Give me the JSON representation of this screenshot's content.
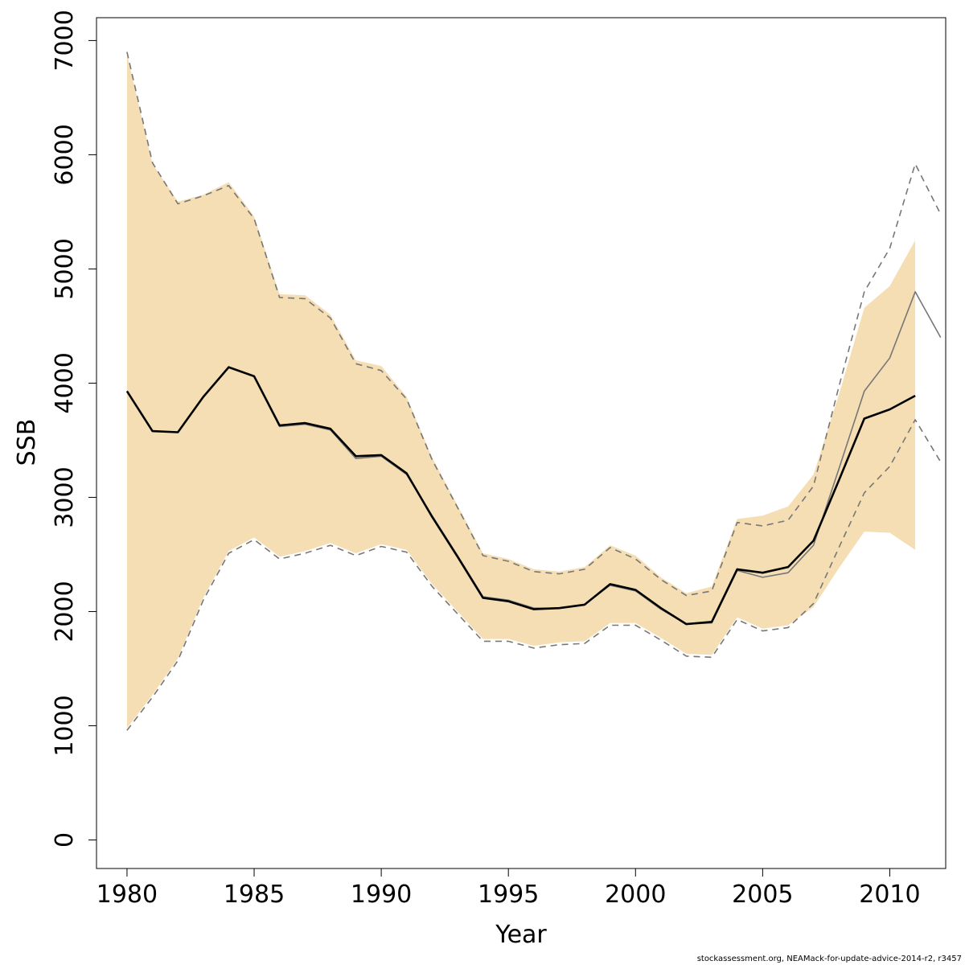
{
  "chart_data": {
    "type": "line",
    "title": "",
    "xlabel": "Year",
    "ylabel": "SSB",
    "xlim": [
      1978.8,
      2012.2
    ],
    "ylim": [
      -250,
      7200
    ],
    "xticks": [
      1980,
      1985,
      1990,
      1995,
      2000,
      2005,
      2010
    ],
    "yticks": [
      0,
      1000,
      2000,
      3000,
      4000,
      5000,
      6000,
      7000
    ],
    "grid": false,
    "legend": "none",
    "colors": {
      "band": "#f5deb3",
      "estimate": "#000000",
      "retro": "#777777",
      "retro_ci": "#777777"
    },
    "band": {
      "x": [
        1980,
        1981,
        1982,
        1983,
        1984,
        1985,
        1986,
        1987,
        1988,
        1989,
        1990,
        1991,
        1992,
        1993,
        1994,
        1995,
        1996,
        1997,
        1998,
        1999,
        2000,
        2001,
        2002,
        2003,
        2004,
        2005,
        2006,
        2007,
        2008,
        2009,
        2010,
        2011
      ],
      "low": [
        980,
        1270,
        1590,
        2120,
        2530,
        2650,
        2480,
        2530,
        2600,
        2510,
        2590,
        2540,
        2240,
        2000,
        1760,
        1760,
        1700,
        1730,
        1740,
        1900,
        1900,
        1770,
        1630,
        1620,
        1950,
        1850,
        1880,
        2040,
        2380,
        2700,
        2690,
        2540
      ],
      "high": [
        6880,
        5920,
        5590,
        5650,
        5760,
        5460,
        4780,
        4770,
        4600,
        4200,
        4150,
        3880,
        3350,
        2930,
        2510,
        2460,
        2370,
        2350,
        2390,
        2580,
        2490,
        2300,
        2160,
        2220,
        2810,
        2840,
        2920,
        3200,
        3900,
        4660,
        4850,
        5250
      ]
    },
    "series": [
      {
        "name": "",
        "role": "estimate",
        "x": [
          1980,
          1981,
          1982,
          1983,
          1984,
          1985,
          1986,
          1987,
          1988,
          1989,
          1990,
          1991,
          1992,
          1993,
          1994,
          1995,
          1996,
          1997,
          1998,
          1999,
          2000,
          2001,
          2002,
          2003,
          2004,
          2005,
          2006,
          2007,
          2008,
          2009,
          2010,
          2011
        ],
        "values": [
          3930,
          3580,
          3570,
          3880,
          4140,
          4060,
          3630,
          3650,
          3600,
          3360,
          3370,
          3210,
          2830,
          2480,
          2120,
          2090,
          2020,
          2030,
          2060,
          2240,
          2190,
          2030,
          1890,
          1910,
          2370,
          2340,
          2390,
          2620,
          3150,
          3690,
          3770,
          3890
        ]
      },
      {
        "name": "",
        "role": "retro",
        "x": [
          1980,
          1981,
          1982,
          1983,
          1984,
          1985,
          1986,
          1987,
          1988,
          1989,
          1990,
          1991,
          1992,
          1993,
          1994,
          1995,
          1996,
          1997,
          1998,
          1999,
          2000,
          2001,
          2002,
          2003,
          2004,
          2005,
          2006,
          2007,
          2008,
          2009,
          2010,
          2011,
          2012
        ],
        "values": [
          3930,
          3580,
          3570,
          3880,
          4140,
          4060,
          3620,
          3640,
          3590,
          3340,
          3360,
          3200,
          2840,
          2490,
          2130,
          2100,
          2030,
          2030,
          2060,
          2230,
          2180,
          2020,
          1890,
          1900,
          2360,
          2300,
          2340,
          2580,
          3250,
          3930,
          4220,
          4800,
          4400
        ]
      },
      {
        "name": "",
        "role": "retro_low",
        "x": [
          1980,
          1981,
          1982,
          1983,
          1984,
          1985,
          1986,
          1987,
          1988,
          1989,
          1990,
          1991,
          1992,
          1993,
          1994,
          1995,
          1996,
          1997,
          1998,
          1999,
          2000,
          2001,
          2002,
          2003,
          2004,
          2005,
          2006,
          2007,
          2008,
          2009,
          2010,
          2011,
          2012
        ],
        "values": [
          960,
          1250,
          1570,
          2100,
          2510,
          2630,
          2460,
          2510,
          2580,
          2490,
          2570,
          2520,
          2220,
          1980,
          1740,
          1740,
          1680,
          1710,
          1720,
          1880,
          1880,
          1750,
          1610,
          1600,
          1930,
          1830,
          1860,
          2070,
          2560,
          3040,
          3270,
          3680,
          3310
        ]
      },
      {
        "name": "",
        "role": "retro_high",
        "x": [
          1980,
          1981,
          1982,
          1983,
          1984,
          1985,
          1986,
          1987,
          1988,
          1989,
          1990,
          1991,
          1992,
          1993,
          1994,
          1995,
          1996,
          1997,
          1998,
          1999,
          2000,
          2001,
          2002,
          2003,
          2004,
          2005,
          2006,
          2007,
          2008,
          2009,
          2010,
          2011,
          2012
        ],
        "values": [
          6900,
          5930,
          5570,
          5640,
          5730,
          5440,
          4750,
          4740,
          4570,
          4170,
          4110,
          3860,
          3330,
          2910,
          2490,
          2440,
          2350,
          2330,
          2370,
          2560,
          2460,
          2280,
          2140,
          2180,
          2780,
          2750,
          2800,
          3100,
          3970,
          4800,
          5180,
          5920,
          5480
        ]
      }
    ]
  },
  "footer": "stockassessment.org, NEAMack-for-update-advice-2014-r2, r3457"
}
